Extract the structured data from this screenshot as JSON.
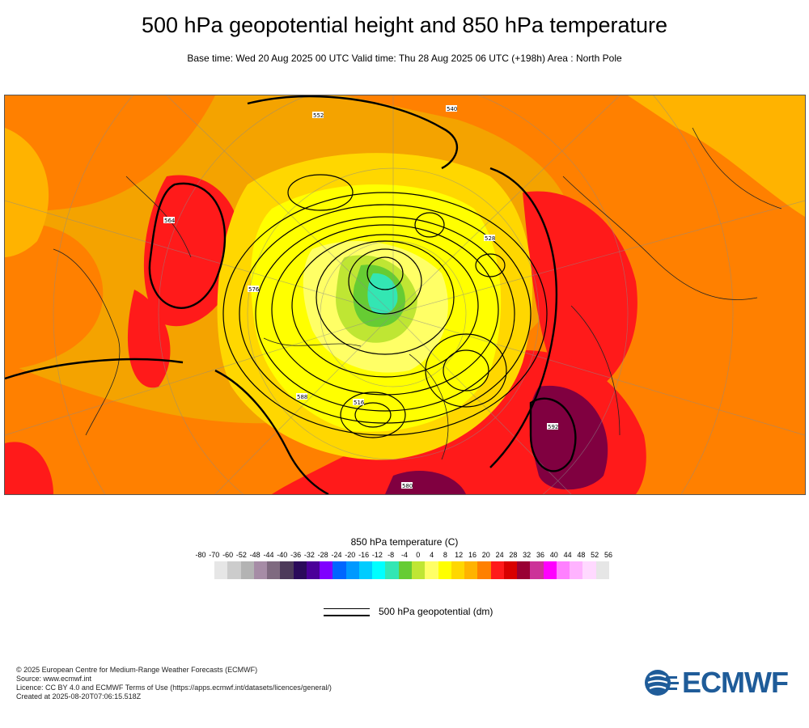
{
  "header": {
    "title": "500 hPa geopotential height and 850 hPa temperature",
    "subtitle": "Base time: Wed 20 Aug 2025 00 UTC Valid time: Thu 28 Aug 2025 06 UTC (+198h) Area : North Pole"
  },
  "map": {
    "projection": "polar stereographic",
    "area": "North Pole",
    "background_color": "#f4a300",
    "contour_labels": [
      "564",
      "576",
      "552",
      "540",
      "528",
      "516",
      "588",
      "592",
      "580"
    ]
  },
  "legend": {
    "title": "850 hPa temperature (C)",
    "ticks": [
      "-80",
      "-70",
      "-60",
      "-52",
      "-48",
      "-44",
      "-40",
      "-36",
      "-32",
      "-28",
      "-24",
      "-20",
      "-16",
      "-12",
      "-8",
      "-4",
      "0",
      "4",
      "8",
      "12",
      "16",
      "20",
      "24",
      "28",
      "32",
      "36",
      "40",
      "44",
      "48",
      "52",
      "56"
    ],
    "colors": [
      "#e6e6e6",
      "#cccccc",
      "#b3b3b3",
      "#a68ca6",
      "#7f6a80",
      "#4d3a5a",
      "#2b0a5a",
      "#4b0099",
      "#8000ff",
      "#0066ff",
      "#0099ff",
      "#00ccff",
      "#00ffff",
      "#33e6b3",
      "#66cc33",
      "#bfe633",
      "#ffff66",
      "#ffff00",
      "#ffd700",
      "#ffb300",
      "#ff8000",
      "#ff1a1a",
      "#d90000",
      "#990033",
      "#cc3399",
      "#ff00ff",
      "#ff80ff",
      "#ffb3ff",
      "#ffd9ff",
      "#e6e6e6"
    ],
    "contour_label": "500 hPa geopotential (dm)"
  },
  "footer": {
    "copyright": "© 2025 European Centre for Medium-Range Weather Forecasts (ECMWF)",
    "source": "Source: www.ecmwf.int",
    "licence": "Licence: CC BY 4.0 and ECMWF Terms of Use (https://apps.ecmwf.int/datasets/licences/general/)",
    "created": "Created at 2025-08-20T07:06:15.518Z"
  },
  "logo": {
    "text": "ECMWF",
    "color": "#1f5c99"
  }
}
